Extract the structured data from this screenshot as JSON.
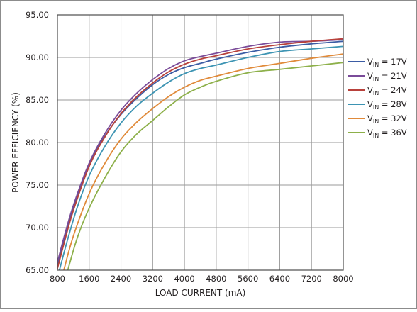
{
  "chart_data": {
    "type": "line",
    "title": "",
    "xlabel": "LOAD CURRENT (mA)",
    "ylabel": "POWER EFFICIENCY (%)",
    "xlim": [
      800,
      8000
    ],
    "ylim": [
      65,
      95
    ],
    "grid": true,
    "legend_placement": "right",
    "x_ticks": [
      "800",
      "1600",
      "2400",
      "3200",
      "4000",
      "4800",
      "5600",
      "6400",
      "7200",
      "8000"
    ],
    "y_ticks": [
      "65.00",
      "70.00",
      "75.00",
      "80.00",
      "85.00",
      "90.00",
      "95.00"
    ],
    "series": [
      {
        "name": "V_IN = 17V",
        "label_main": "V",
        "label_sub": "IN",
        "label_rest": " = 17V",
        "color": "#3b5ca4",
        "points": [
          [
            770,
            65
          ],
          [
            950,
            68.3
          ],
          [
            1200,
            72.3
          ],
          [
            1600,
            77.5
          ],
          [
            2000,
            80.8
          ],
          [
            2400,
            83.3
          ],
          [
            2800,
            85.2
          ],
          [
            3200,
            86.8
          ],
          [
            3600,
            88.0
          ],
          [
            4000,
            88.8
          ],
          [
            4400,
            89.3
          ],
          [
            4800,
            89.8
          ],
          [
            5600,
            90.6
          ],
          [
            6400,
            91.2
          ],
          [
            7200,
            91.6
          ],
          [
            8000,
            91.9
          ]
        ]
      },
      {
        "name": "V_IN = 21V",
        "label_main": "V",
        "label_sub": "IN",
        "label_rest": " = 21V",
        "color": "#7a4b99",
        "points": [
          [
            750,
            65
          ],
          [
            950,
            68.6
          ],
          [
            1200,
            72.6
          ],
          [
            1600,
            77.6
          ],
          [
            2000,
            81.1
          ],
          [
            2400,
            83.8
          ],
          [
            2800,
            85.8
          ],
          [
            3200,
            87.4
          ],
          [
            3600,
            88.7
          ],
          [
            4000,
            89.6
          ],
          [
            4400,
            90.1
          ],
          [
            4800,
            90.5
          ],
          [
            5600,
            91.3
          ],
          [
            6400,
            91.8
          ],
          [
            7200,
            91.9
          ],
          [
            8000,
            92.1
          ]
        ]
      },
      {
        "name": "V_IN = 24V",
        "label_main": "V",
        "label_sub": "IN",
        "label_rest": " = 24V",
        "color": "#b8413b",
        "points": [
          [
            790,
            65
          ],
          [
            980,
            68.4
          ],
          [
            1200,
            72.0
          ],
          [
            1600,
            77.2
          ],
          [
            2000,
            80.7
          ],
          [
            2400,
            83.4
          ],
          [
            2800,
            85.4
          ],
          [
            3200,
            87.0
          ],
          [
            3600,
            88.3
          ],
          [
            4000,
            89.2
          ],
          [
            4400,
            89.8
          ],
          [
            4800,
            90.2
          ],
          [
            5600,
            91.0
          ],
          [
            6400,
            91.5
          ],
          [
            7200,
            91.9
          ],
          [
            8000,
            92.2
          ]
        ]
      },
      {
        "name": "V_IN = 28V",
        "label_main": "V",
        "label_sub": "IN",
        "label_rest": " = 28V",
        "color": "#3d94b3",
        "points": [
          [
            850,
            65
          ],
          [
            1050,
            68.5
          ],
          [
            1300,
            72.4
          ],
          [
            1600,
            76.1
          ],
          [
            2000,
            79.6
          ],
          [
            2400,
            82.3
          ],
          [
            2800,
            84.3
          ],
          [
            3200,
            85.8
          ],
          [
            3600,
            87.1
          ],
          [
            4000,
            88.1
          ],
          [
            4400,
            88.7
          ],
          [
            4800,
            89.1
          ],
          [
            5600,
            90.0
          ],
          [
            6400,
            90.7
          ],
          [
            7200,
            91.0
          ],
          [
            8000,
            91.3
          ]
        ]
      },
      {
        "name": "V_IN = 32V",
        "label_main": "V",
        "label_sub": "IN",
        "label_rest": " = 32V",
        "color": "#e08a3a",
        "points": [
          [
            960,
            65
          ],
          [
            1200,
            69.0
          ],
          [
            1600,
            74.0
          ],
          [
            2000,
            77.6
          ],
          [
            2400,
            80.4
          ],
          [
            2800,
            82.4
          ],
          [
            3200,
            84.0
          ],
          [
            3600,
            85.4
          ],
          [
            4000,
            86.5
          ],
          [
            4400,
            87.3
          ],
          [
            4800,
            87.8
          ],
          [
            5600,
            88.7
          ],
          [
            6400,
            89.3
          ],
          [
            7200,
            89.9
          ],
          [
            8000,
            90.4
          ]
        ]
      },
      {
        "name": "V_IN = 36V",
        "label_main": "V",
        "label_sub": "IN",
        "label_rest": " = 36V",
        "color": "#8db04a",
        "points": [
          [
            1060,
            65
          ],
          [
            1300,
            68.8
          ],
          [
            1600,
            72.3
          ],
          [
            2000,
            75.9
          ],
          [
            2400,
            78.9
          ],
          [
            2800,
            81.0
          ],
          [
            3200,
            82.6
          ],
          [
            3600,
            84.2
          ],
          [
            4000,
            85.6
          ],
          [
            4400,
            86.5
          ],
          [
            4800,
            87.2
          ],
          [
            5600,
            88.2
          ],
          [
            6400,
            88.6
          ],
          [
            7200,
            89.0
          ],
          [
            8000,
            89.4
          ]
        ]
      }
    ]
  }
}
